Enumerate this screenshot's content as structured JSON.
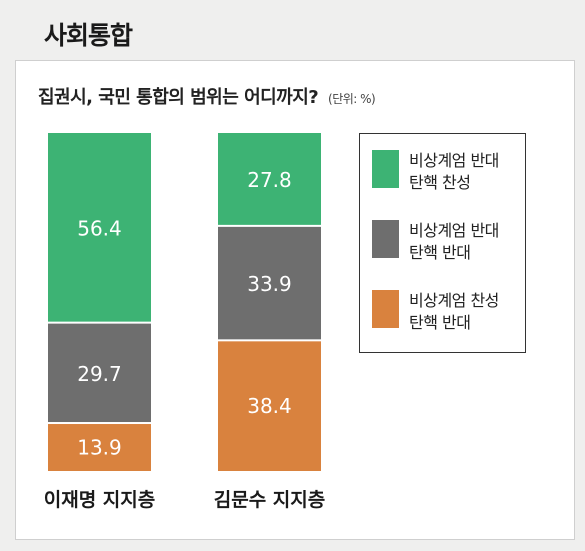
{
  "section_title": "사회통합",
  "colors": {
    "green": "#3db374",
    "gray": "#6e6e6e",
    "orange": "#d9823e"
  },
  "chart_data": {
    "type": "bar",
    "stacked": true,
    "title": "집권시, 국민 통합의 범위는 어디까지?",
    "unit": "(단위: %)",
    "categories": [
      "이재명 지지층",
      "김문수 지지층"
    ],
    "series": [
      {
        "name": "비상계엄 반대 탄핵 찬성",
        "values": [
          56.4,
          27.8
        ],
        "color": "#3db374"
      },
      {
        "name": "비상계엄 반대 탄핵 반대",
        "values": [
          29.7,
          33.9
        ],
        "color": "#6e6e6e"
      },
      {
        "name": "비상계엄 찬성 탄핵 반대",
        "values": [
          13.9,
          38.4
        ],
        "color": "#d9823e"
      }
    ],
    "legend": [
      {
        "line1": "비상계엄 반대",
        "line2": "탄핵 찬성"
      },
      {
        "line1": "비상계엄 반대",
        "line2": "탄핵 반대"
      },
      {
        "line1": "비상계엄 찬성",
        "line2": "탄핵 반대"
      }
    ],
    "legend_position": "right"
  }
}
